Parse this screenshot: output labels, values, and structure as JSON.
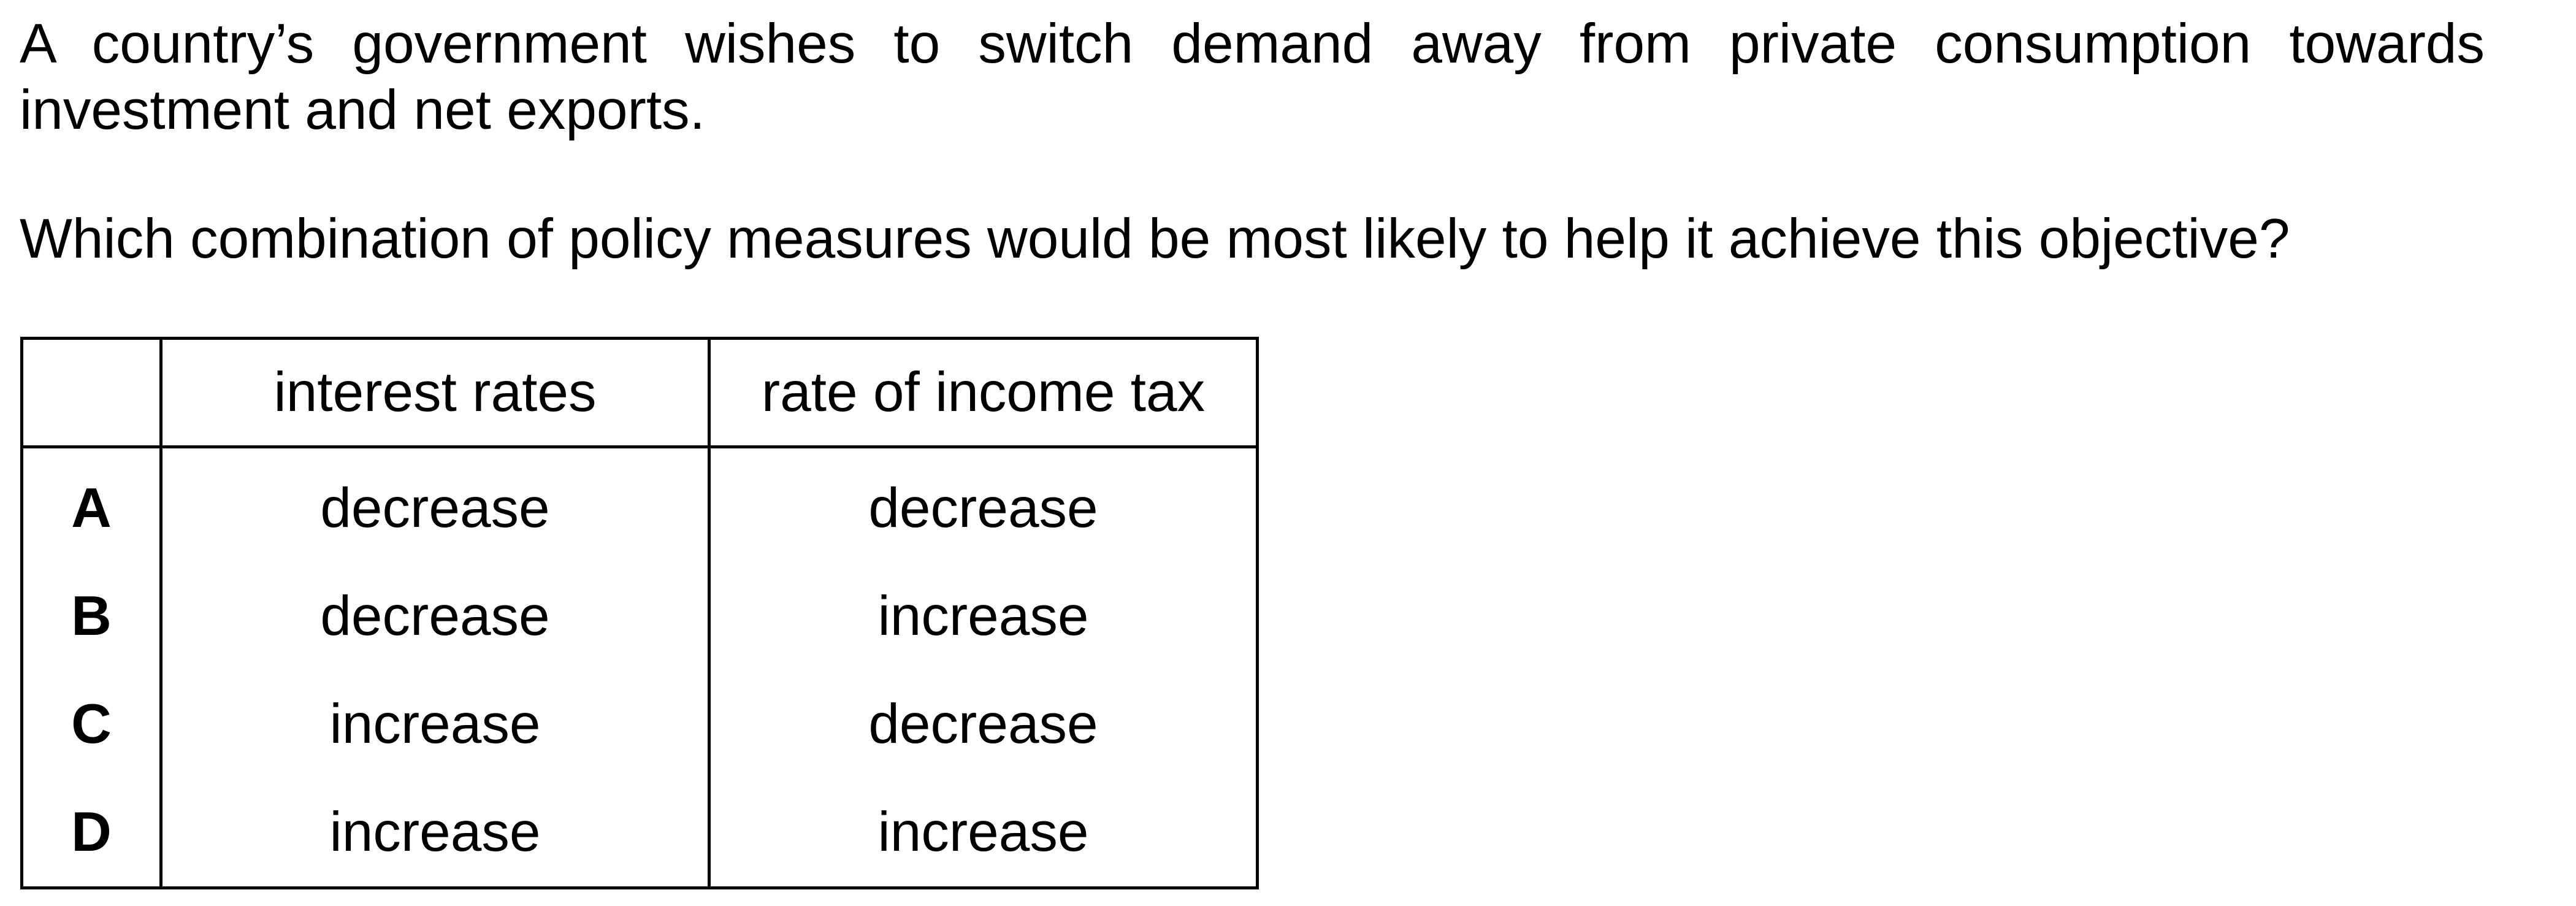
{
  "question": {
    "stem": "A country’s government wishes to switch demand away from private consumption towards investment and net exports.",
    "prompt": "Which combination of policy measures would be most likely to help it achieve this objective?"
  },
  "table": {
    "headers": [
      "",
      "interest rates",
      "rate of income tax"
    ],
    "rows": [
      {
        "option": "A",
        "interest_rates": "decrease",
        "income_tax": "decrease"
      },
      {
        "option": "B",
        "interest_rates": "decrease",
        "income_tax": "increase"
      },
      {
        "option": "C",
        "interest_rates": "increase",
        "income_tax": "decrease"
      },
      {
        "option": "D",
        "interest_rates": "increase",
        "income_tax": "increase"
      }
    ]
  }
}
